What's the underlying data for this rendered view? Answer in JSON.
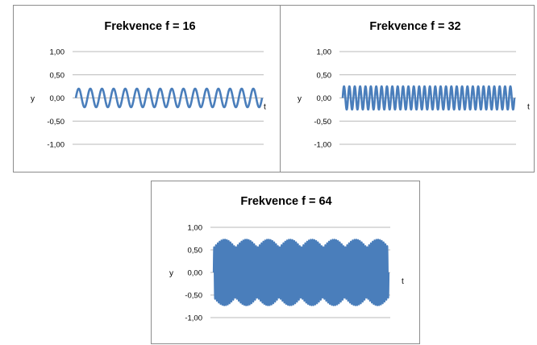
{
  "colors": {
    "series": "#4a7ebb",
    "grid": "#b8b8b8",
    "border": "#8c8c8c"
  },
  "chart_data": [
    {
      "type": "line",
      "title": "Frekvence f = 16",
      "xlabel": "t",
      "ylabel": "y",
      "ylim": [
        -1,
        1
      ],
      "yticks": [
        "1,00",
        "0,50",
        "0,00",
        "-0,50",
        "-1,00"
      ],
      "ytick_values": [
        1,
        0.5,
        0,
        -0.5,
        -1
      ],
      "grid": true,
      "legend": "none",
      "series": [
        {
          "frequency": 16,
          "amplitude": 0.2,
          "cycles": 16
        }
      ]
    },
    {
      "type": "line",
      "title": "Frekvence f = 32",
      "xlabel": "t",
      "ylabel": "y",
      "ylim": [
        -1,
        1
      ],
      "yticks": [
        "1,00",
        "0,50",
        "0,00",
        "-0,50",
        "-1,00"
      ],
      "ytick_values": [
        1,
        0.5,
        0,
        -0.5,
        -1
      ],
      "grid": true,
      "legend": "none",
      "series": [
        {
          "frequency": 32,
          "amplitude": 0.25,
          "cycles": 32
        }
      ]
    },
    {
      "type": "line",
      "title": "Frekvence f = 64",
      "xlabel": "t",
      "ylabel": "y",
      "ylim": [
        -1,
        1
      ],
      "yticks": [
        "1,00",
        "0,50",
        "0,00",
        "-0,50",
        "-1,00"
      ],
      "ytick_values": [
        1,
        0.5,
        0,
        -0.5,
        -1
      ],
      "grid": true,
      "legend": "none",
      "series": [
        {
          "frequency": 64,
          "amplitude": 0.55,
          "envelope_amplitude": 0.18,
          "envelope_cycles": 8,
          "cycles": 96
        }
      ]
    }
  ]
}
